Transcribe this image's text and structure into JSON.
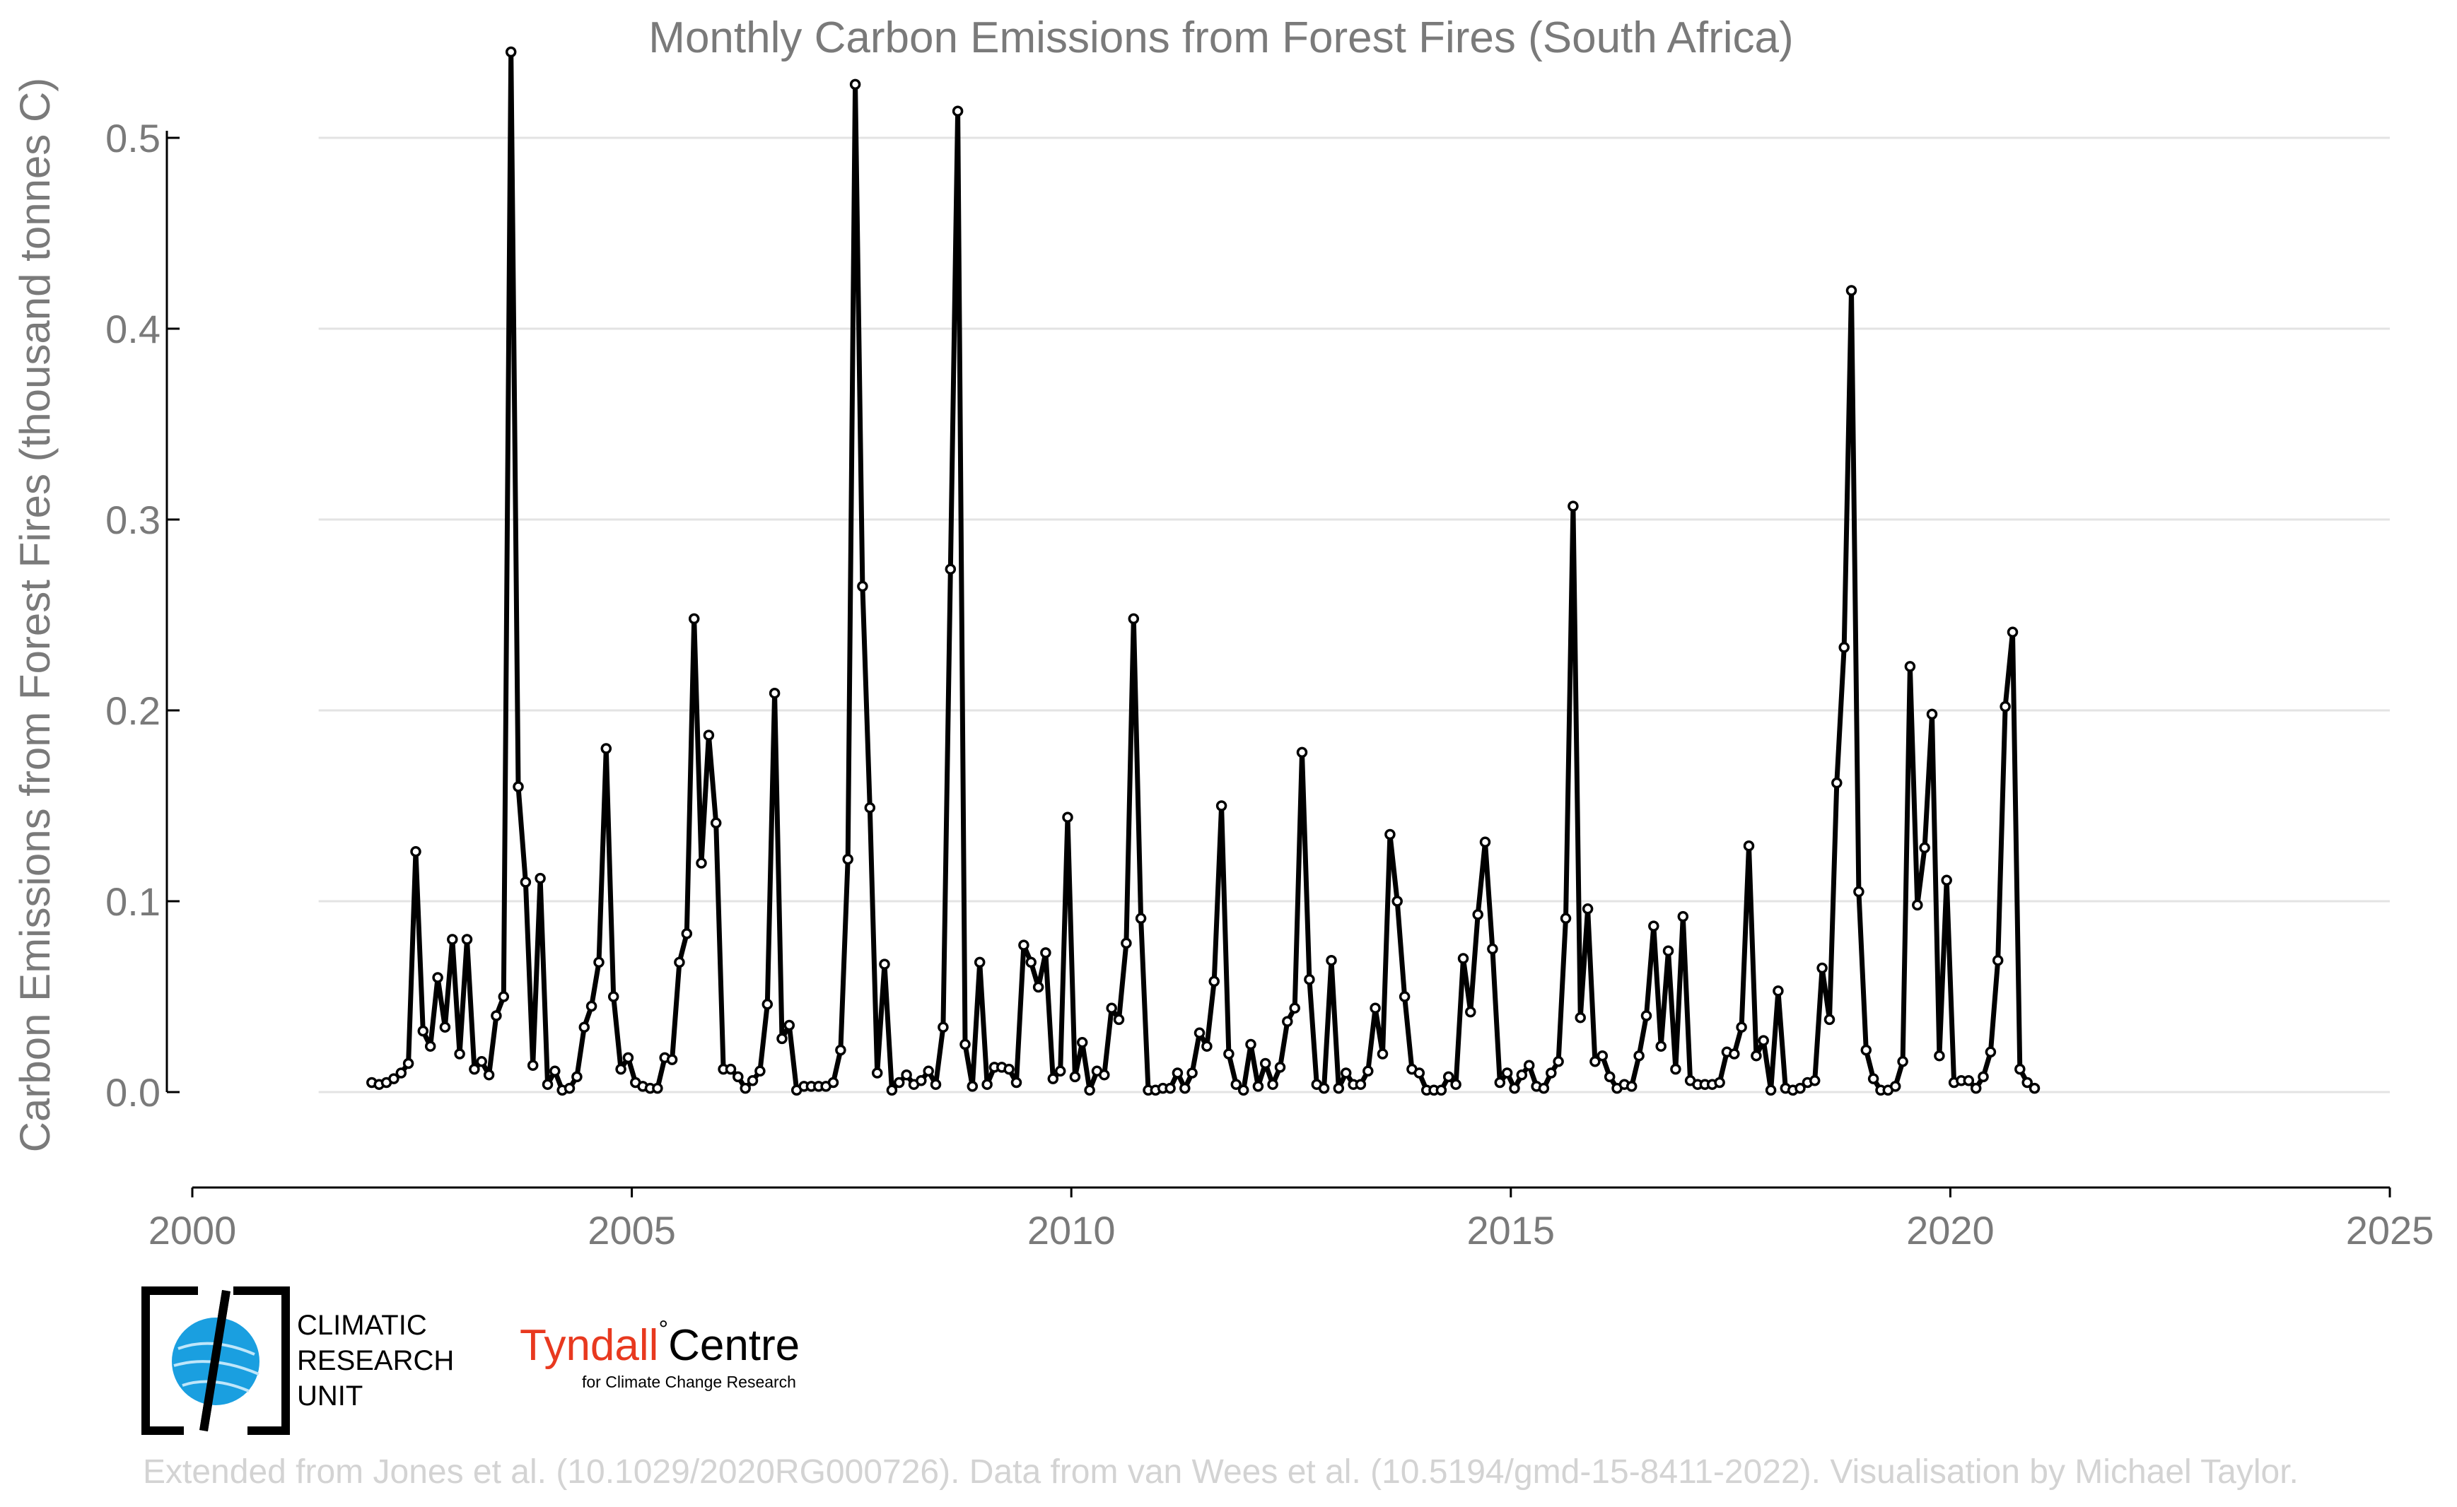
{
  "chart_data": {
    "type": "line",
    "title": "Monthly Carbon Emissions from Forest Fires (South Africa)",
    "xlabel": "",
    "ylabel": "Carbon Emissions from Forest Fires (thousand tonnes C)",
    "xlim": [
      2000,
      2025
    ],
    "ylim": [
      -0.05,
      0.55
    ],
    "x_ticks": [
      "2000",
      "2005",
      "2010",
      "2015",
      "2020",
      "2025"
    ],
    "y_ticks": [
      "0.0",
      "0.1",
      "0.2",
      "0.3",
      "0.4",
      "0.5"
    ],
    "grid": "horizontal",
    "legend": "none",
    "x_start": "2002-01",
    "x_end": "2020-12",
    "series": [
      {
        "color": "#000000",
        "values": [
          0.005,
          0.004,
          0.005,
          0.007,
          0.01,
          0.015,
          0.126,
          0.032,
          0.024,
          0.06,
          0.034,
          0.08,
          0.02,
          0.08,
          0.012,
          0.016,
          0.009,
          0.04,
          0.05,
          0.545,
          0.16,
          0.11,
          0.014,
          0.112,
          0.004,
          0.011,
          0.001,
          0.002,
          0.008,
          0.034,
          0.045,
          0.068,
          0.18,
          0.05,
          0.012,
          0.018,
          0.005,
          0.003,
          0.002,
          0.002,
          0.018,
          0.017,
          0.068,
          0.083,
          0.248,
          0.12,
          0.187,
          0.141,
          0.012,
          0.012,
          0.008,
          0.002,
          0.006,
          0.011,
          0.046,
          0.209,
          0.028,
          0.035,
          0.001,
          0.003,
          0.003,
          0.003,
          0.003,
          0.005,
          0.022,
          0.122,
          0.528,
          0.265,
          0.149,
          0.01,
          0.067,
          0.001,
          0.005,
          0.009,
          0.004,
          0.006,
          0.011,
          0.004,
          0.034,
          0.274,
          0.514,
          0.025,
          0.003,
          0.068,
          0.004,
          0.013,
          0.013,
          0.012,
          0.005,
          0.077,
          0.068,
          0.055,
          0.073,
          0.007,
          0.011,
          0.144,
          0.008,
          0.026,
          0.001,
          0.011,
          0.009,
          0.044,
          0.038,
          0.078,
          0.248,
          0.091,
          0.001,
          0.001,
          0.002,
          0.002,
          0.01,
          0.002,
          0.01,
          0.031,
          0.024,
          0.058,
          0.15,
          0.02,
          0.004,
          0.001,
          0.025,
          0.003,
          0.015,
          0.004,
          0.013,
          0.037,
          0.044,
          0.178,
          0.059,
          0.004,
          0.002,
          0.069,
          0.002,
          0.01,
          0.004,
          0.004,
          0.011,
          0.044,
          0.02,
          0.135,
          0.1,
          0.05,
          0.012,
          0.01,
          0.001,
          0.001,
          0.001,
          0.008,
          0.004,
          0.07,
          0.042,
          0.093,
          0.131,
          0.075,
          0.005,
          0.01,
          0.002,
          0.009,
          0.014,
          0.003,
          0.002,
          0.01,
          0.016,
          0.091,
          0.307,
          0.039,
          0.096,
          0.016,
          0.019,
          0.008,
          0.002,
          0.004,
          0.003,
          0.019,
          0.04,
          0.087,
          0.024,
          0.074,
          0.012,
          0.092,
          0.006,
          0.004,
          0.004,
          0.004,
          0.005,
          0.021,
          0.02,
          0.034,
          0.129,
          0.019,
          0.027,
          0.001,
          0.053,
          0.002,
          0.001,
          0.002,
          0.005,
          0.006,
          0.065,
          0.038,
          0.162,
          0.233,
          0.42,
          0.105,
          0.022,
          0.007,
          0.001,
          0.001,
          0.003,
          0.016,
          0.223,
          0.098,
          0.128,
          0.198,
          0.019,
          0.111,
          0.005,
          0.006,
          0.006,
          0.002,
          0.008,
          0.021,
          0.069,
          0.202,
          0.241,
          0.012,
          0.005,
          0.002
        ]
      }
    ]
  },
  "logos": {
    "cru_lines": [
      "CLIMATIC",
      "RESEARCH",
      "UNIT"
    ],
    "tyndall_colored": "Tyndall",
    "tyndall_degree": "°",
    "tyndall_rest": "Centre",
    "tyndall_sub": "for Climate Change Research"
  },
  "footer": "Extended from Jones et al. (10.1029/2020RG000726). Data from van Wees et al. (10.5194/gmd-15-8411-2022). Visualisation by Michael Taylor."
}
